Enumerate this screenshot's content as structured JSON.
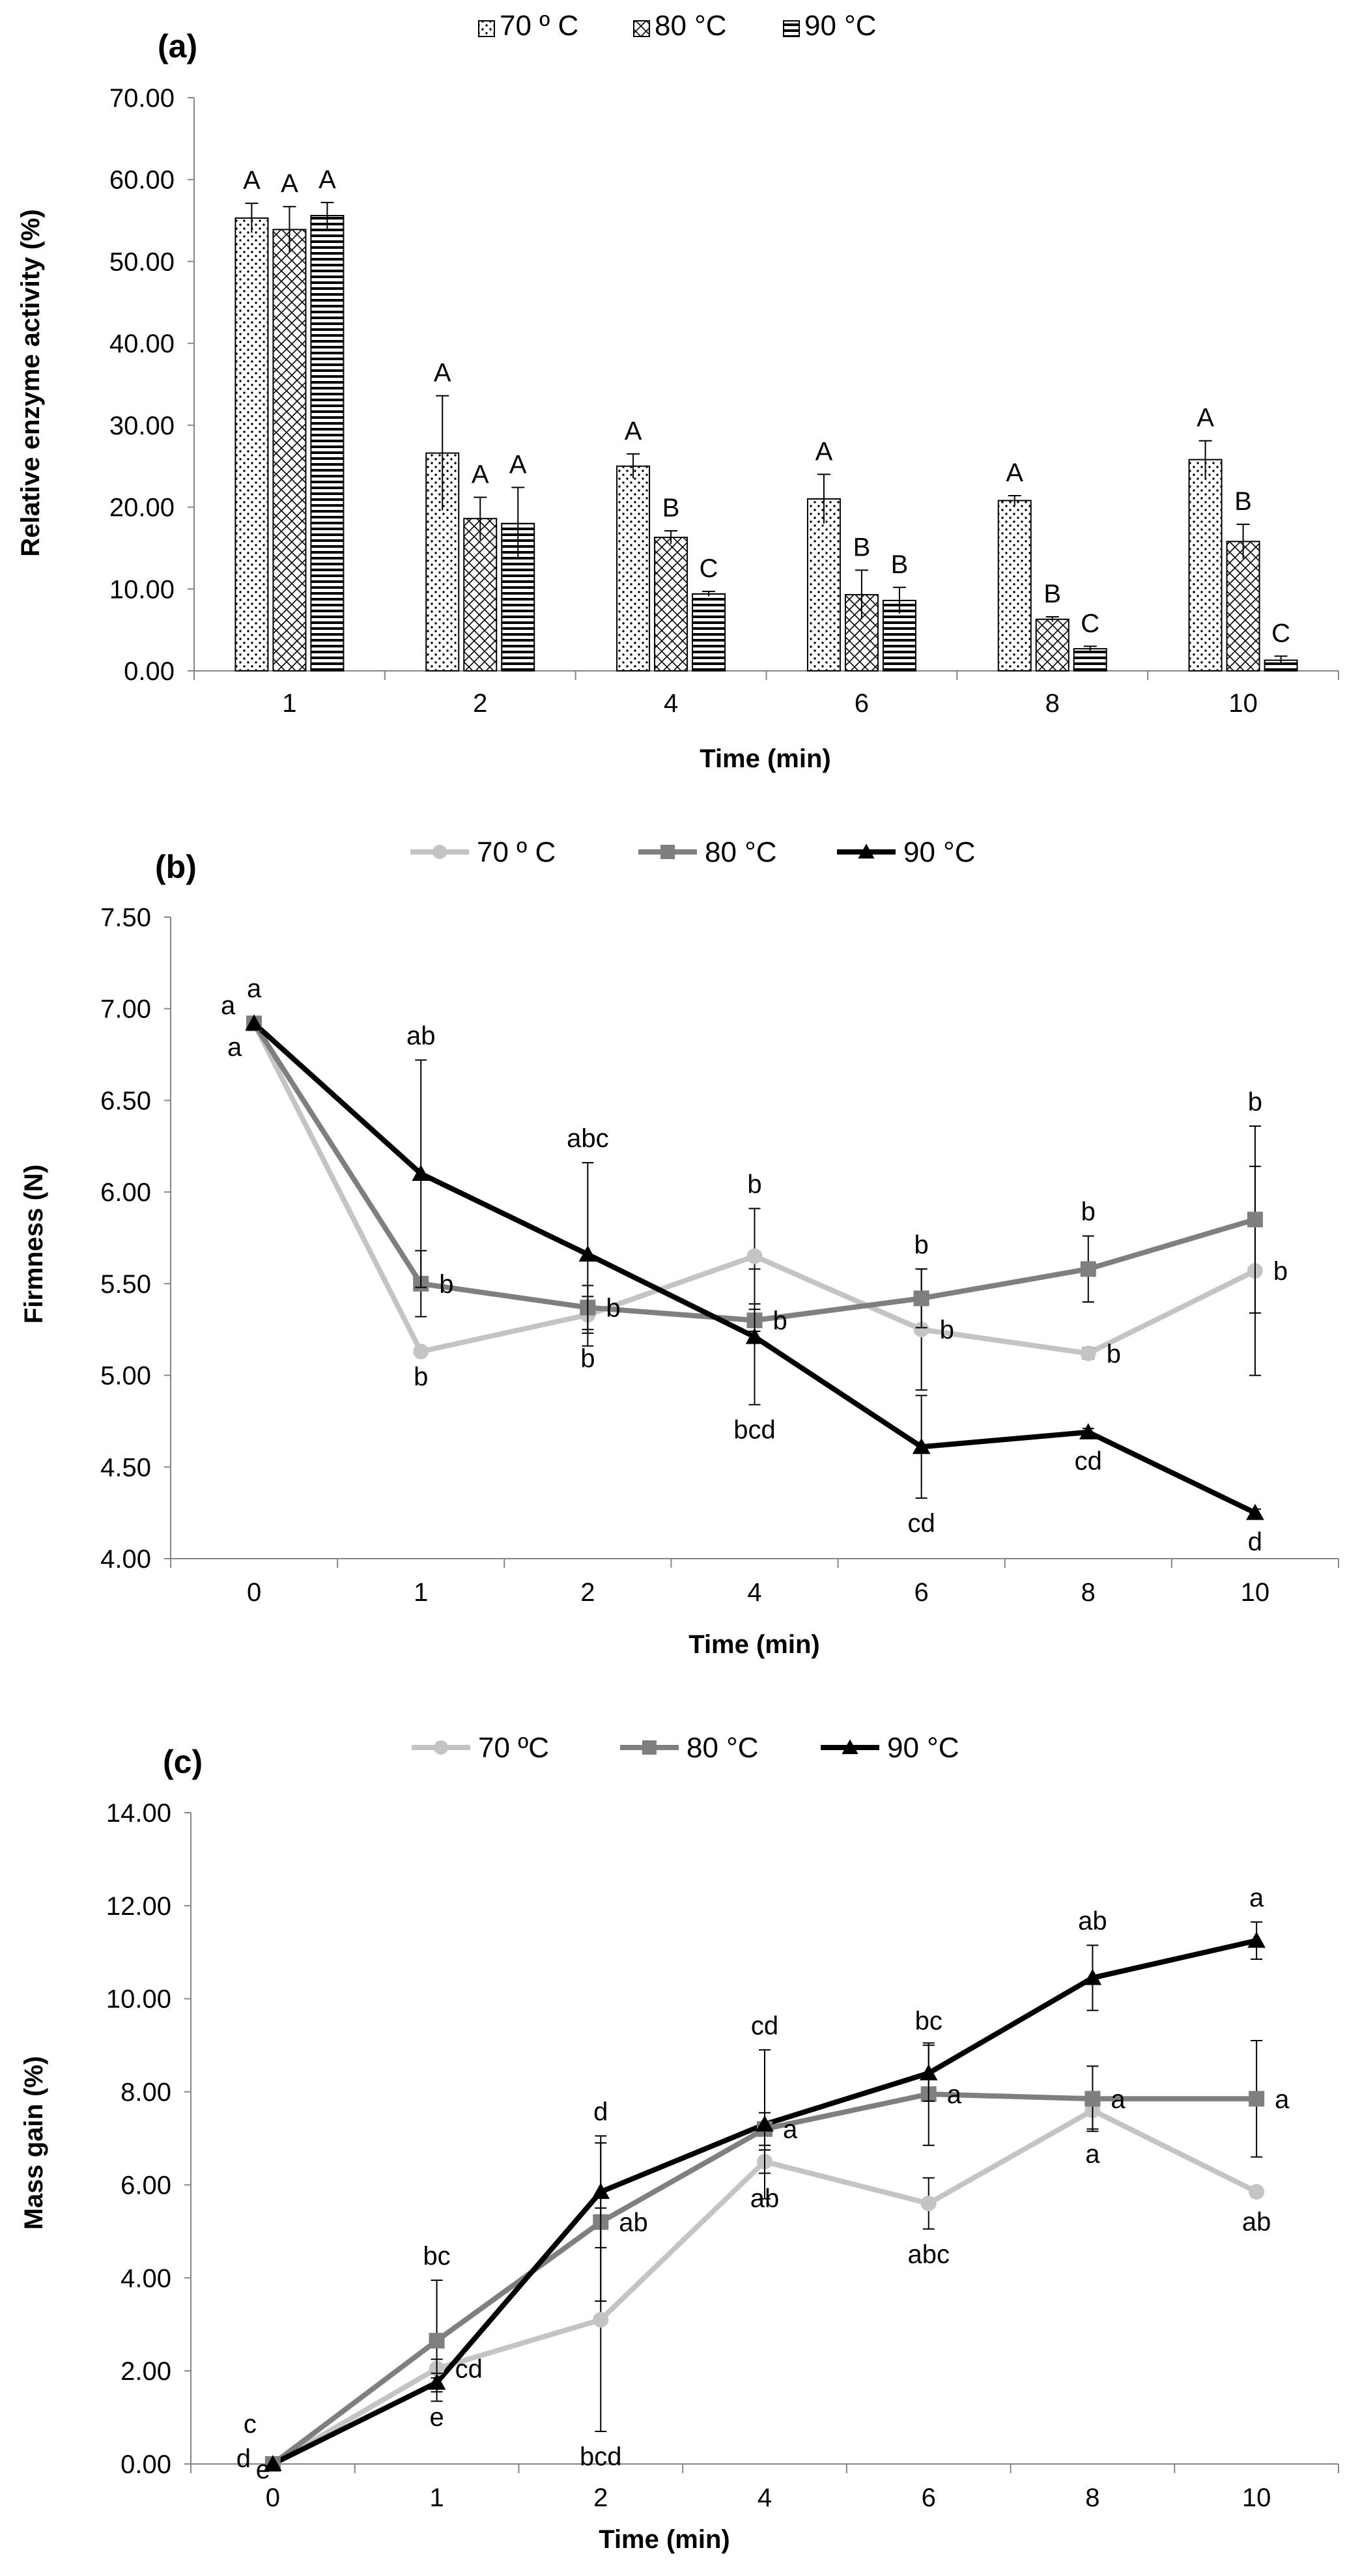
{
  "chart_data": [
    {
      "panel_label": "(a)",
      "type": "bar",
      "ylabel": "Relative enzyme activity (%)",
      "xlabel": "Time (min)",
      "ylim": [
        0,
        70
      ],
      "yticks": [
        "0.00",
        "10.00",
        "20.00",
        "30.00",
        "40.00",
        "50.00",
        "60.00",
        "70.00"
      ],
      "categories": [
        "1",
        "2",
        "4",
        "6",
        "8",
        "10"
      ],
      "legend_position": "top",
      "series": [
        {
          "name": "70 º C",
          "pattern": "dots",
          "values": [
            55.3,
            26.6,
            25.0,
            21.0,
            20.8,
            25.8
          ],
          "errors": [
            1.8,
            7.0,
            1.5,
            3.0,
            0.6,
            2.3
          ],
          "letters": [
            "A",
            "A",
            "A",
            "A",
            "A",
            "A"
          ]
        },
        {
          "name": "80 °C",
          "pattern": "crosshatch",
          "values": [
            53.9,
            18.6,
            16.3,
            9.3,
            6.3,
            15.8
          ],
          "errors": [
            2.8,
            2.6,
            0.8,
            3.0,
            0.3,
            2.1
          ],
          "letters": [
            "A",
            "A",
            "B",
            "B",
            "B",
            "B"
          ]
        },
        {
          "name": "90 °C",
          "pattern": "horizontal",
          "values": [
            55.6,
            18.0,
            9.4,
            8.6,
            2.7,
            1.3
          ],
          "errors": [
            1.6,
            4.4,
            0.3,
            1.6,
            0.3,
            0.5
          ],
          "letters": [
            "A",
            "A",
            "C",
            "B",
            "C",
            "C"
          ]
        }
      ]
    },
    {
      "panel_label": "(b)",
      "type": "line",
      "ylabel": "Firmness (N)",
      "xlabel": "Time (min)",
      "ylim": [
        4.0,
        7.5
      ],
      "yticks": [
        "4.00",
        "4.50",
        "5.00",
        "5.50",
        "6.00",
        "6.50",
        "7.00",
        "7.50"
      ],
      "categories": [
        "0",
        "1",
        "2",
        "4",
        "6",
        "8",
        "10"
      ],
      "legend_position": "top",
      "series": [
        {
          "name": "70 º C",
          "color": "#c4c4c4",
          "marker": "circle",
          "values": [
            6.92,
            5.13,
            5.33,
            5.65,
            5.25,
            5.12,
            5.57
          ],
          "errors": [
            0,
            0,
            0.1,
            0.26,
            0.33,
            0.03,
            0.57
          ],
          "letters": [
            "a",
            "b",
            "b",
            "b",
            "b",
            "b",
            "b"
          ]
        },
        {
          "name": "80 °C",
          "color": "#7f7f7f",
          "marker": "square",
          "values": [
            6.92,
            5.5,
            5.37,
            5.3,
            5.42,
            5.58,
            5.85
          ],
          "errors": [
            0,
            0.18,
            0.12,
            0.06,
            0.16,
            0.18,
            0.51
          ],
          "letters": [
            "a",
            "b",
            "b",
            "b",
            "b",
            "b",
            "b"
          ]
        },
        {
          "name": "90 °C",
          "color": "#000000",
          "marker": "triangle",
          "values": [
            6.92,
            6.1,
            5.66,
            5.21,
            4.61,
            4.69,
            4.25
          ],
          "errors": [
            0,
            0.62,
            0.5,
            0.37,
            0.28,
            0.02,
            0.02
          ],
          "letters": [
            "a",
            "ab",
            "abc",
            "bcd",
            "cd",
            "cd",
            "d"
          ]
        }
      ]
    },
    {
      "panel_label": "(c)",
      "type": "line",
      "ylabel": "Mass gain (%)",
      "xlabel": "Time (min)",
      "ylim": [
        0,
        14
      ],
      "yticks": [
        "0.00",
        "2.00",
        "4.00",
        "6.00",
        "8.00",
        "10.00",
        "12.00",
        "14.00"
      ],
      "categories": [
        "0",
        "1",
        "2",
        "4",
        "6",
        "8",
        "10"
      ],
      "legend_position": "top",
      "series": [
        {
          "name": "70 ºC",
          "color": "#c4c4c4",
          "marker": "circle",
          "values": [
            0.0,
            2.05,
            3.1,
            6.5,
            5.6,
            7.6,
            5.85
          ],
          "errors": [
            0,
            0.2,
            2.4,
            0.25,
            0.55,
            0.4,
            0.1
          ],
          "letters": [
            "d",
            "cd",
            "bcd",
            "ab",
            "abc",
            "a",
            "ab"
          ]
        },
        {
          "name": "80 °C",
          "color": "#7f7f7f",
          "marker": "square",
          "values": [
            0.0,
            2.65,
            5.2,
            7.2,
            7.95,
            7.85,
            7.85
          ],
          "errors": [
            0,
            1.3,
            1.7,
            0.35,
            1.1,
            0.7,
            1.25
          ],
          "letters": [
            "c",
            "bc",
            "ab",
            "a",
            "a",
            "a",
            "a"
          ]
        },
        {
          "name": "90 °C",
          "color": "#000000",
          "marker": "triangle",
          "values": [
            0.0,
            1.75,
            5.85,
            7.3,
            8.4,
            10.45,
            11.25
          ],
          "errors": [
            0,
            0.2,
            1.2,
            1.6,
            0.6,
            0.7,
            0.4
          ],
          "letters": [
            "e",
            "e",
            "d",
            "cd",
            "bc",
            "ab",
            "a"
          ]
        }
      ]
    }
  ]
}
